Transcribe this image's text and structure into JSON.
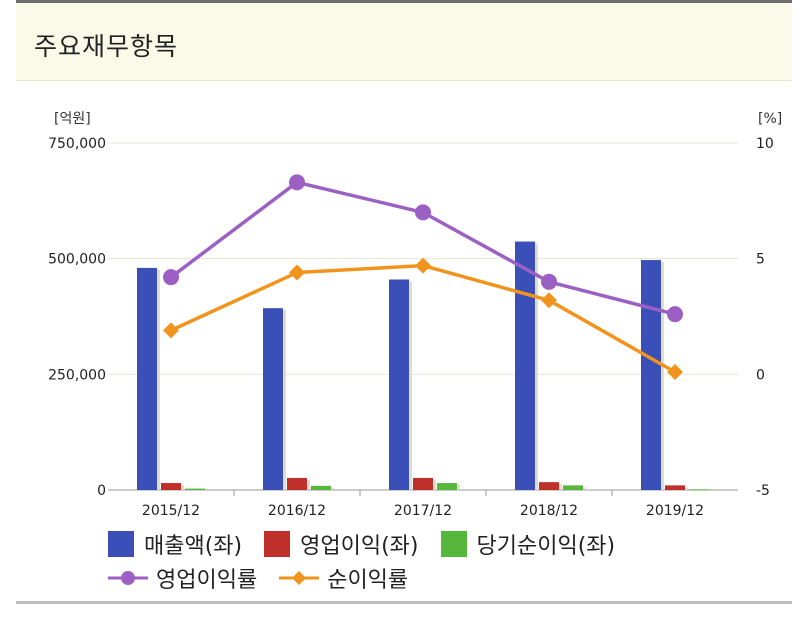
{
  "header": {
    "title": "주요재무항목"
  },
  "chart_data": {
    "type": "bar",
    "categories": [
      "2015/12",
      "2016/12",
      "2017/12",
      "2018/12",
      "2019/12"
    ],
    "left_axis": {
      "unit": "[억원]",
      "ylim": [
        0,
        750000
      ],
      "ticks": [
        0,
        250000,
        500000,
        750000
      ],
      "tick_labels": [
        "0",
        "250,000",
        "500,000",
        "750,000"
      ]
    },
    "right_axis": {
      "unit": "[%]",
      "ylim": [
        -5,
        10
      ],
      "ticks": [
        -5,
        0,
        5,
        10
      ],
      "tick_labels": [
        "-5",
        "0",
        "5",
        "10"
      ]
    },
    "series": [
      {
        "name": "매출액(좌)",
        "kind": "bar",
        "axis": "left",
        "color": "#3a4fb8",
        "values": [
          480000,
          393000,
          455000,
          537000,
          497000
        ]
      },
      {
        "name": "영업이익(좌)",
        "kind": "bar",
        "axis": "left",
        "color": "#c0302a",
        "values": [
          15000,
          26000,
          26000,
          17000,
          10000
        ]
      },
      {
        "name": "당기순이익(좌)",
        "kind": "bar",
        "axis": "left",
        "color": "#55b83a",
        "values": [
          3000,
          9000,
          15000,
          10000,
          1500
        ]
      },
      {
        "name": "영업이익률",
        "kind": "line",
        "axis": "right",
        "color": "#9c5fc4",
        "marker": "circle",
        "values": [
          4.2,
          8.3,
          7.0,
          4.0,
          2.6
        ]
      },
      {
        "name": "순이익률",
        "kind": "line",
        "axis": "right",
        "color": "#f0941e",
        "marker": "diamond",
        "values": [
          1.9,
          4.4,
          4.7,
          3.2,
          0.1
        ]
      }
    ],
    "grid": "horizontal",
    "legend_placement": "bottom"
  }
}
